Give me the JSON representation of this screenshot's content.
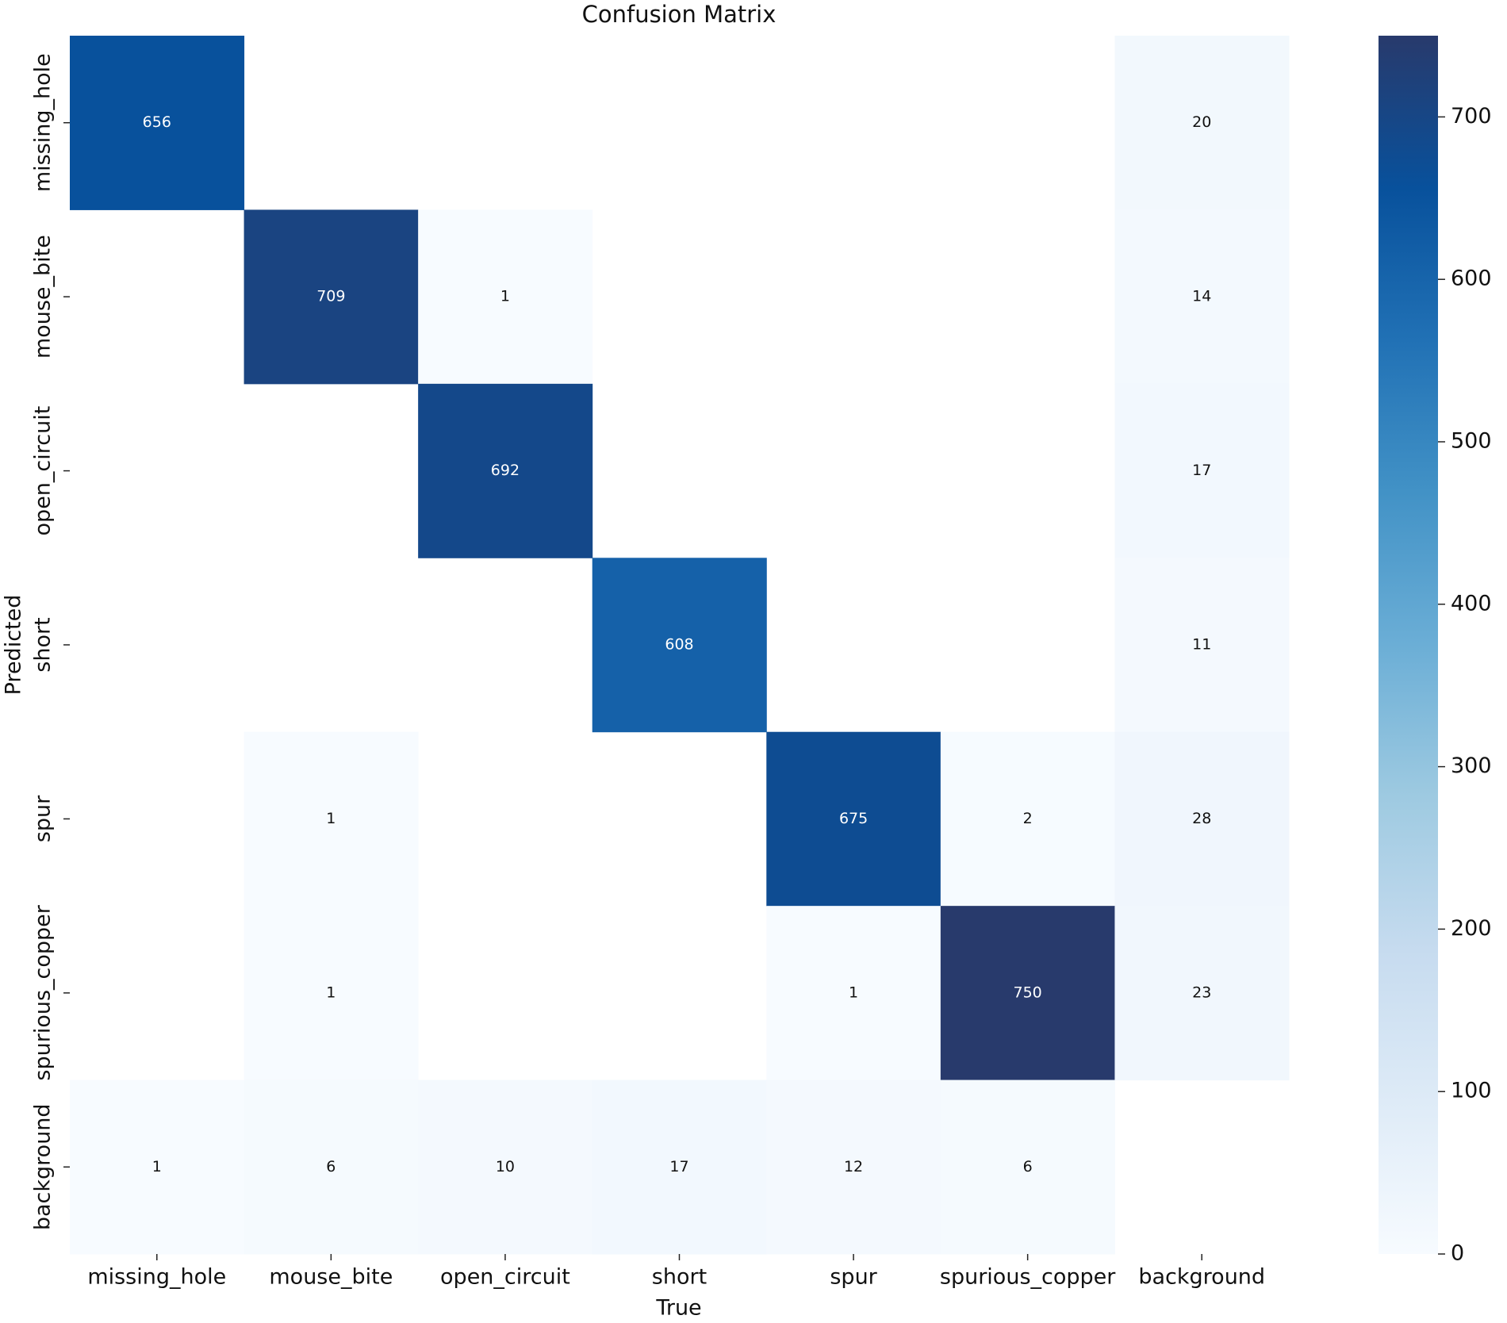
{
  "chart_data": {
    "type": "heatmap",
    "title": "Confusion Matrix",
    "x_label": "True",
    "y_label": "Predicted",
    "x_categories": [
      "missing_hole",
      "mouse_bite",
      "open_circuit",
      "short",
      "spur",
      "spurious_copper",
      "background"
    ],
    "y_categories": [
      "missing_hole",
      "mouse_bite",
      "open_circuit",
      "short",
      "spur",
      "spurious_copper",
      "background"
    ],
    "values": [
      [
        656,
        null,
        null,
        null,
        null,
        null,
        20
      ],
      [
        null,
        709,
        1,
        null,
        null,
        null,
        14
      ],
      [
        null,
        null,
        692,
        null,
        null,
        null,
        17
      ],
      [
        null,
        null,
        null,
        608,
        null,
        null,
        11
      ],
      [
        null,
        1,
        null,
        null,
        675,
        2,
        28
      ],
      [
        null,
        1,
        null,
        null,
        1,
        750,
        23
      ],
      [
        1,
        6,
        10,
        17,
        12,
        6,
        null
      ]
    ],
    "colormap": [
      "#f7fbff",
      "#deebf7",
      "#c6dbef",
      "#9ecae1",
      "#6baed6",
      "#4292c6",
      "#2171b5",
      "#08519c",
      "#283a6c"
    ],
    "clim": [
      0,
      750
    ],
    "cticks": [
      0,
      100,
      200,
      300,
      400,
      500,
      600,
      700
    ]
  }
}
